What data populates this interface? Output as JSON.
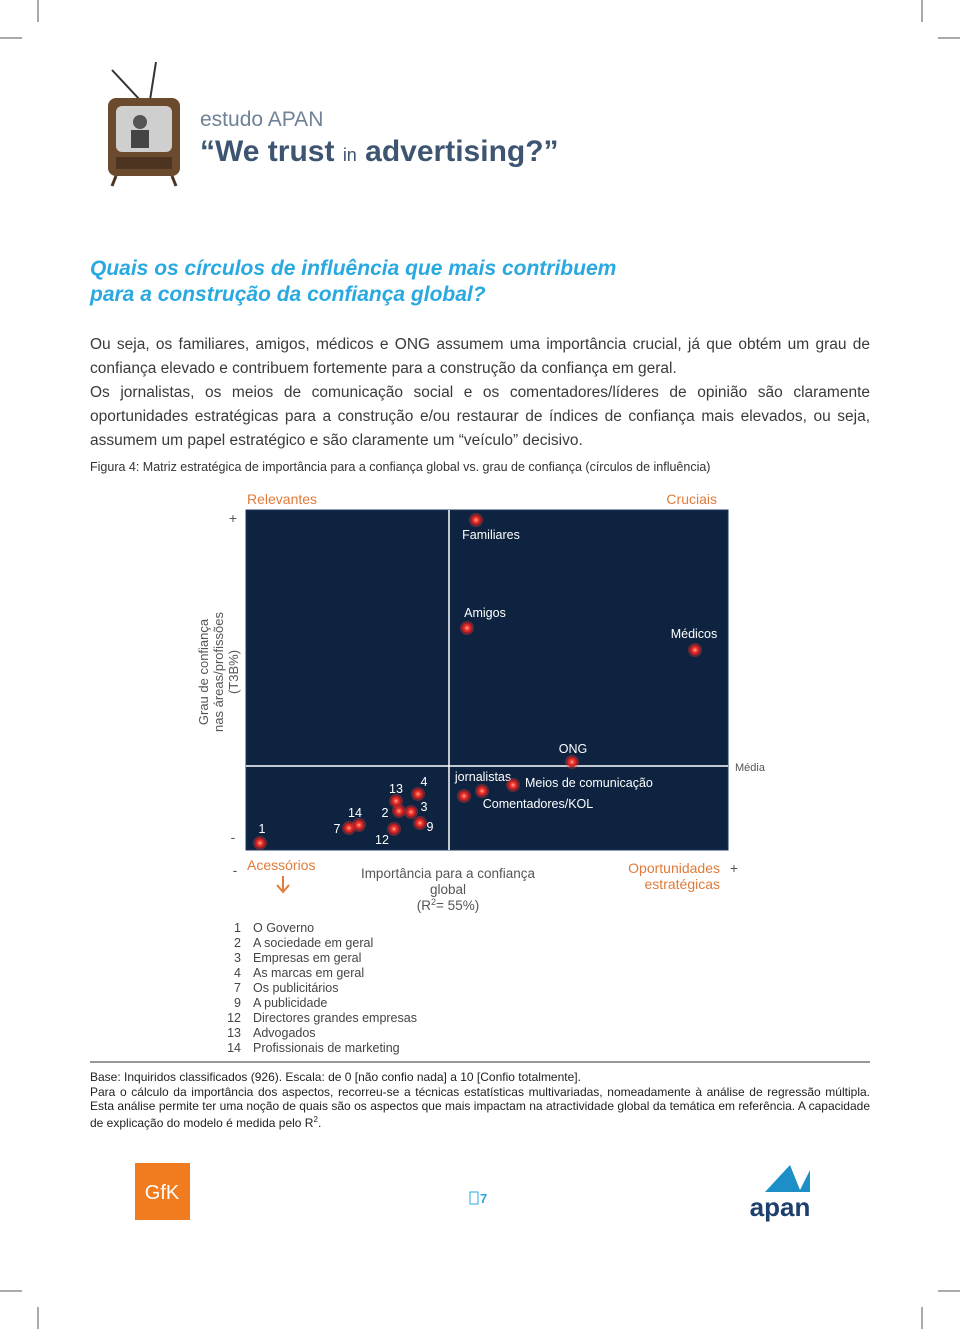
{
  "header": {
    "kicker": "estudo APAN",
    "title_before": "“We trust",
    "title_in": "in",
    "title_after": "advertising?”"
  },
  "heading": [
    "Quais os círculos de influência que mais contribuem",
    "para a construção da confiança global?"
  ],
  "paragraphs": [
    "Ou seja, os familiares, amigos, médicos e ONG assumem uma importância crucial, já que obtém um grau de confiança elevado e contribuem fortemente para a construção da confiança em geral.",
    "Os jornalistas, os meios de comunicação social e os comentadores/líderes de opinião são claramente oportunidades estratégicas para a construção e/ou restaurar de índices de confiança mais elevados, ou seja, assumem um papel estratégico e são claramente um “veículo” decisivo."
  ],
  "figure": {
    "caption": "Figura 4: Matriz estratégica de importância para a confiança global vs. grau de confiança (círculos de influência)",
    "quadrants": {
      "top_left": "Relevantes",
      "top_right": "Cruciais",
      "bottom_left": "Acessórios",
      "bottom_right": [
        "Oportunidades",
        "estratégicas"
      ]
    },
    "y_high": "+",
    "y_low": "-",
    "x_low": "-",
    "x_high": "+",
    "y_axis_title": [
      "Grau de confiança",
      "nas áreas/profissões",
      "(T3B%)"
    ],
    "x_axis_title": [
      "Importância para a confiança",
      "global"
    ],
    "x_axis_r2": {
      "before": "(R",
      "sup": "2",
      "after": "= 55%)"
    },
    "mean_label": "Média",
    "points": [
      {
        "label": "Familiares"
      },
      {
        "label": "Amigos"
      },
      {
        "label": "Médicos"
      },
      {
        "label": "ONG"
      },
      {
        "label": "jornalistas"
      },
      {
        "label": "Meios de comunicação"
      },
      {
        "label": "Comentadores/KOL"
      },
      {
        "label": 1
      },
      {
        "label": 7
      },
      {
        "label": 14
      },
      {
        "label": 2
      },
      {
        "label": 13
      },
      {
        "label": 4
      },
      {
        "label": 3
      },
      {
        "label": 9
      },
      {
        "label": 12
      }
    ],
    "legend": [
      {
        "number": 1,
        "label": "O Governo"
      },
      {
        "number": 2,
        "label": "A sociedade em geral"
      },
      {
        "number": 3,
        "label": "Empresas em geral"
      },
      {
        "number": 4,
        "label": "As marcas em geral"
      },
      {
        "number": 7,
        "label": "Os publicitários"
      },
      {
        "number": 9,
        "label": "A publicidade"
      },
      {
        "number": 12,
        "label": "Directores grandes empresas"
      },
      {
        "number": 13,
        "label": "Advogados"
      },
      {
        "number": 14,
        "label": "Profissionais de marketing"
      }
    ]
  },
  "footnotes": {
    "base": "Base: Inquiridos classificados (926). Escala: de 0 [não confio nada] a 10 [Confio totalmente].",
    "note_before": "Para o cálculo da importância dos aspectos, recorreu-se a técnicas estatísticas multivariadas, nomeadamente à análise de regressão múltipla. Esta análise permite ter uma noção de quais são os aspectos que mais impactam na atractividade global da temática em referência. A capacidade de explicação do modelo é medida pelo R",
    "note_sup": "2",
    "note_after": "."
  },
  "page_number": 7,
  "logos": {
    "left": "GfK",
    "right": "apan"
  }
}
